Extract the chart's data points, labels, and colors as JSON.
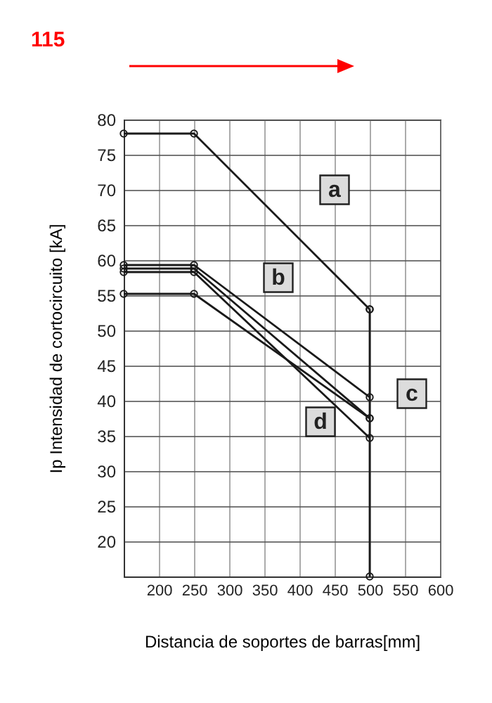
{
  "chart_data": {
    "type": "line",
    "title": "115",
    "xlabel": "Distancia de soportes de barras[mm]",
    "ylabel": "Ip Intensidad de cortocircuito [kA]",
    "xlim": [
      150,
      600
    ],
    "xticks": [
      200,
      250,
      300,
      350,
      400,
      450,
      500,
      550,
      600
    ],
    "ylim": [
      15,
      80
    ],
    "yticks": [
      20,
      25,
      30,
      35,
      40,
      45,
      50,
      55,
      60,
      65,
      70,
      75,
      80
    ],
    "grid": true,
    "marker": "circle",
    "series": [
      {
        "color": "#1a1a1a",
        "x": [
          150,
          250,
          500
        ],
        "values": [
          78,
          78,
          53
        ]
      },
      {
        "color": "#1a1a1a",
        "x": [
          150,
          250,
          500
        ],
        "values": [
          59.3,
          59.3,
          40.5
        ]
      },
      {
        "color": "#1a1a1a",
        "x": [
          150,
          250,
          500
        ],
        "values": [
          58.8,
          58.8,
          37.5
        ]
      },
      {
        "color": "#1a1a1a",
        "x": [
          150,
          250,
          500
        ],
        "values": [
          58.3,
          58.3,
          34.7
        ]
      },
      {
        "color": "#1a1a1a",
        "x": [
          150,
          250,
          500
        ],
        "values": [
          55.2,
          55.2,
          37.5
        ]
      },
      {
        "color": "#1a1a1a",
        "x": [
          500,
          500
        ],
        "values": [
          53,
          15
        ]
      }
    ],
    "annotations": [
      {
        "text": "a",
        "x": 450,
        "y": 70
      },
      {
        "text": "b",
        "x": 370,
        "y": 57.5
      },
      {
        "text": "c",
        "x": 560,
        "y": 41
      },
      {
        "text": "d",
        "x": 430,
        "y": 37
      }
    ]
  }
}
